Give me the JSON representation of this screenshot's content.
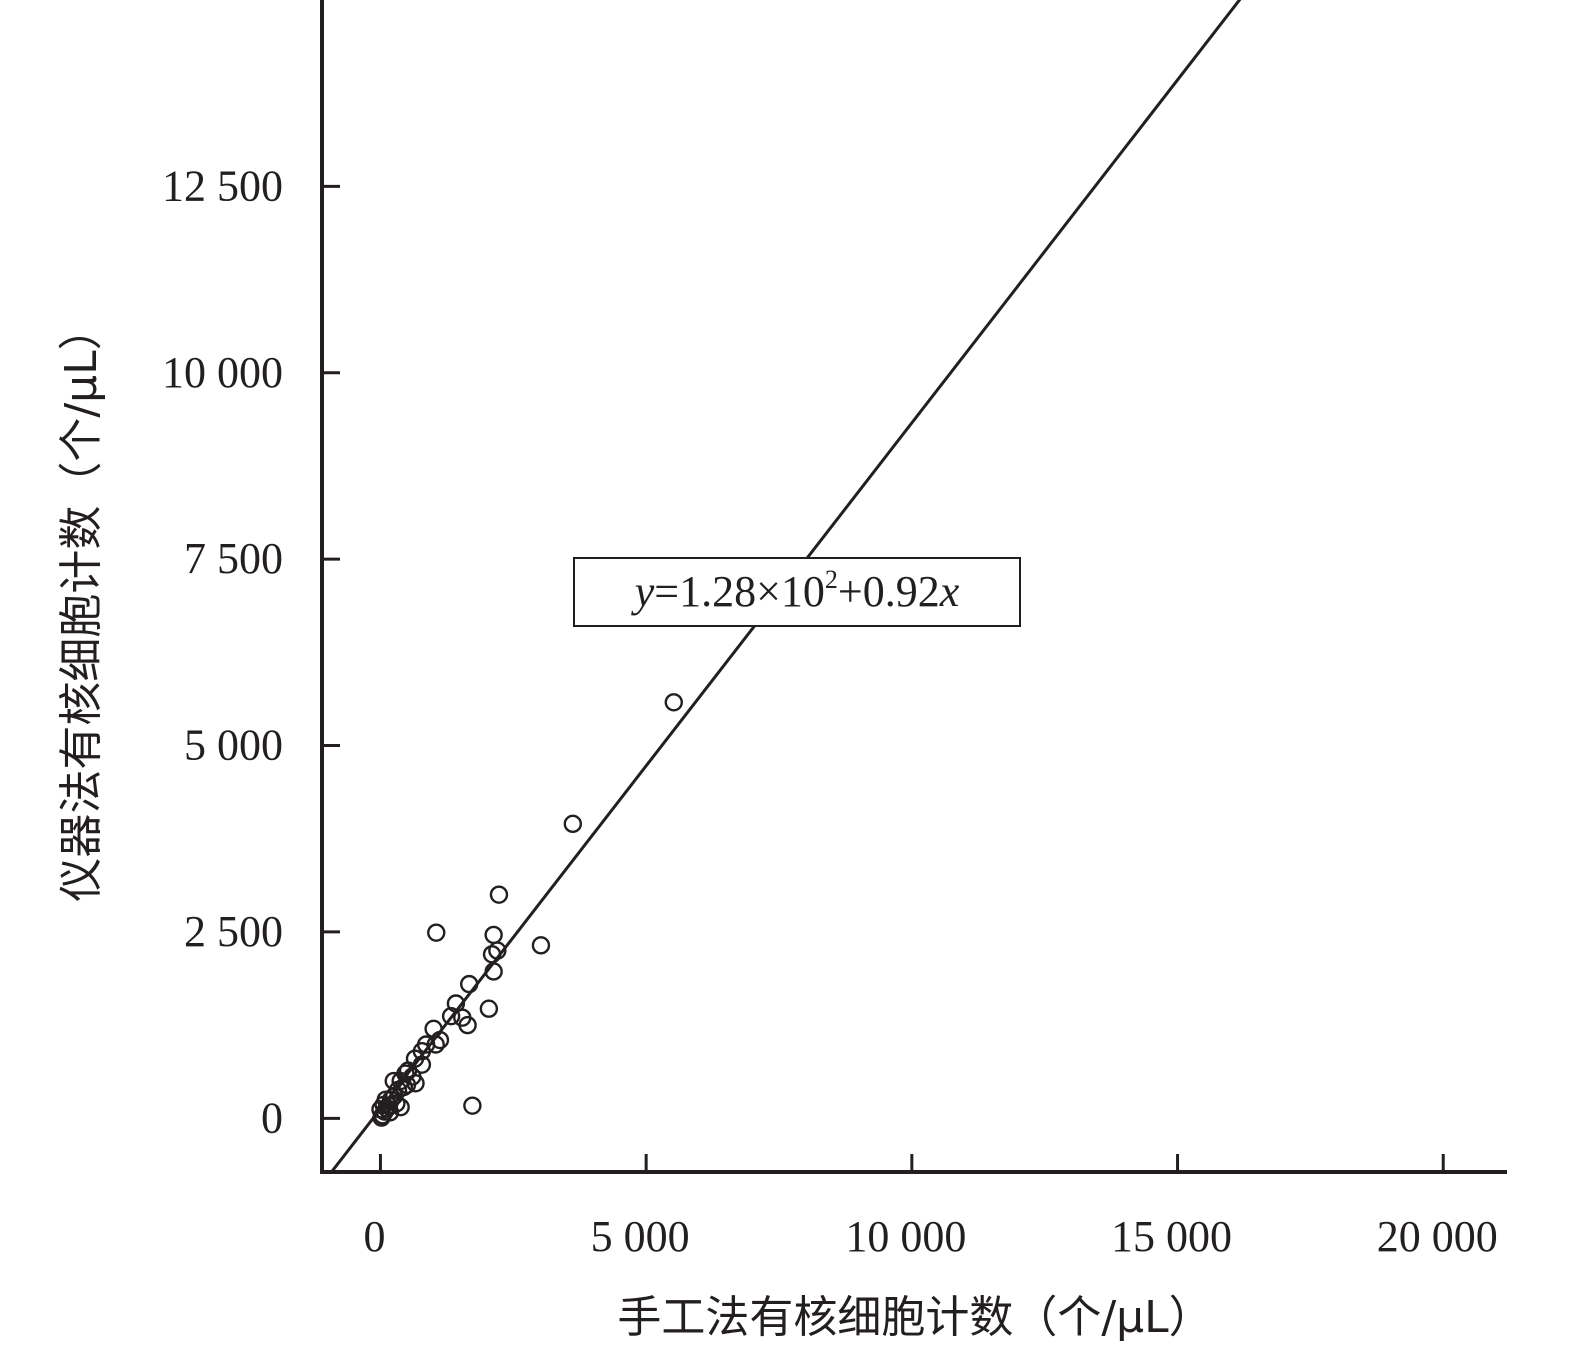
{
  "chart_data": {
    "type": "scatter",
    "title": "",
    "xlabel": "手工法有核细胞计数（个/μL）",
    "ylabel": "仪器法有核细胞计数（个/μL）",
    "xlim": [
      -1100,
      21200
    ],
    "ylim": [
      -720,
      15000
    ],
    "x_ticks": [
      {
        "value": 0,
        "label": "0"
      },
      {
        "value": 5000,
        "label": "5 000"
      },
      {
        "value": 10000,
        "label": "10 000"
      },
      {
        "value": 15000,
        "label": "15 000"
      },
      {
        "value": 20000,
        "label": "20 000"
      }
    ],
    "y_ticks": [
      {
        "value": 0,
        "label": "0"
      },
      {
        "value": 2500,
        "label": "2 500"
      },
      {
        "value": 5000,
        "label": "5 000"
      },
      {
        "value": 7500,
        "label": "7 500"
      },
      {
        "value": 10000,
        "label": "10 000"
      },
      {
        "value": 12500,
        "label": "12 500"
      }
    ],
    "grid": false,
    "marker": "open-circle",
    "color": "#231f20",
    "regression": {
      "intercept": 128,
      "slope": 0.92
    },
    "equation": {
      "y": "y",
      "eq_mid": "=1.28×10",
      "sup": "2",
      "eq_end": "+0.92",
      "x": "x"
    },
    "points": [
      [
        5520,
        5580
      ],
      [
        3620,
        3950
      ],
      [
        2230,
        3000
      ],
      [
        3020,
        2320
      ],
      [
        1050,
        2490
      ],
      [
        2130,
        2460
      ],
      [
        2100,
        2200
      ],
      [
        2200,
        2250
      ],
      [
        2130,
        1970
      ],
      [
        2040,
        1470
      ],
      [
        1670,
        1800
      ],
      [
        1420,
        1540
      ],
      [
        1540,
        1350
      ],
      [
        1330,
        1370
      ],
      [
        1640,
        1250
      ],
      [
        1000,
        1200
      ],
      [
        1120,
        1050
      ],
      [
        1040,
        990
      ],
      [
        860,
        990
      ],
      [
        780,
        900
      ],
      [
        780,
        720
      ],
      [
        650,
        800
      ],
      [
        520,
        640
      ],
      [
        470,
        600
      ],
      [
        600,
        560
      ],
      [
        660,
        470
      ],
      [
        380,
        500
      ],
      [
        250,
        500
      ],
      [
        440,
        420
      ],
      [
        330,
        380
      ],
      [
        260,
        300
      ],
      [
        200,
        250
      ],
      [
        380,
        150
      ],
      [
        160,
        170
      ],
      [
        120,
        130
      ],
      [
        60,
        180
      ],
      [
        80,
        90
      ],
      [
        40,
        40
      ],
      [
        0,
        120
      ],
      [
        20,
        10
      ],
      [
        1730,
        170
      ],
      [
        300,
        200
      ],
      [
        180,
        80
      ],
      [
        100,
        250
      ],
      [
        500,
        450
      ]
    ]
  }
}
